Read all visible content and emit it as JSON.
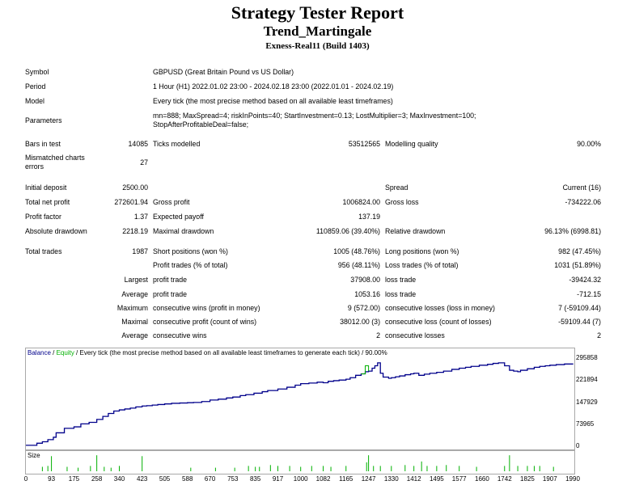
{
  "report": {
    "title": "Strategy Tester Report",
    "expert": "Trend_Martingale",
    "server": "Exness-Real11 (Build 1403)"
  },
  "settings": [
    {
      "label": "Symbol",
      "value": "GBPUSD (Great Britain Pound vs US Dollar)"
    },
    {
      "label": "Period",
      "value": "1 Hour (H1) 2022.01.02 23:00 - 2024.02.18 23:00 (2022.01.01 - 2024.02.19)"
    },
    {
      "label": "Model",
      "value": "Every tick (the most precise method based on all available least timeframes)"
    },
    {
      "label": "Parameters",
      "value": "mn=888; MaxSpread=4; riskInPoints=40; StartInvestment=0.13; LostMultiplier=3; MaxInvestment=100; StopAfterProfitableDeal=false;"
    }
  ],
  "stats": {
    "bars_label": "Bars in test",
    "bars": "14085",
    "ticks_label": "Ticks modelled",
    "ticks": "53512565",
    "quality_label": "Modelling quality",
    "quality": "90.00%",
    "mismatch_label": "Mismatched charts errors",
    "mismatch": "27",
    "deposit_label": "Initial deposit",
    "deposit": "2500.00",
    "spread_label": "Spread",
    "spread": "Current (16)",
    "netprofit_label": "Total net profit",
    "netprofit": "272601.94",
    "grossprofit_label": "Gross profit",
    "grossprofit": "1006824.00",
    "grossloss_label": "Gross loss",
    "grossloss": "-734222.06",
    "pf_label": "Profit factor",
    "pf": "1.37",
    "payoff_label": "Expected payoff",
    "payoff": "137.19",
    "absdd_label": "Absolute drawdown",
    "absdd": "2218.19",
    "maxdd_label": "Maximal drawdown",
    "maxdd": "110859.06 (39.40%)",
    "reldd_label": "Relative drawdown",
    "reldd": "96.13% (6998.81)",
    "trades_label": "Total trades",
    "trades": "1987",
    "short_label": "Short positions (won %)",
    "short": "1005 (48.76%)",
    "long_label": "Long positions (won %)",
    "long": "982 (47.45%)",
    "ptrades_label": "Profit trades (% of total)",
    "ptrades": "956 (48.11%)",
    "ltrades_label": "Loss trades (% of total)",
    "ltrades": "1031 (51.89%)",
    "largest_label": "Largest",
    "largest_pt_label": "profit trade",
    "largest_pt": "37908.00",
    "largest_lt_label": "loss trade",
    "largest_lt": "-39424.32",
    "average_label": "Average",
    "average_pt_label": "profit trade",
    "average_pt": "1053.16",
    "average_lt_label": "loss trade",
    "average_lt": "-712.15",
    "maximum_label": "Maximum",
    "max_cw_label": "consecutive wins (profit in money)",
    "max_cw": "9 (572.00)",
    "max_cl_label": "consecutive losses (loss in money)",
    "max_cl": "7 (-59109.44)",
    "maximal_label": "Maximal",
    "maximal_cp_label": "consecutive profit (count of wins)",
    "maximal_cp": "38012.00 (3)",
    "maximal_cl_label": "consecutive loss (count of losses)",
    "maximal_cl": "-59109.44 (7)",
    "avg2_label": "Average",
    "avg_cw_label": "consecutive wins",
    "avg_cw": "2",
    "avg_cl_label": "consecutive losses",
    "avg_cl": "2"
  },
  "chart_legend": {
    "balance": "Balance",
    "sep": " / ",
    "equity": "Equity",
    "rest": " / Every tick (the most precise method based on all available least timeframes to generate each tick) / 90.00%",
    "size_label": "Size",
    "balance_color": "#00008b",
    "equity_color": "#00b000"
  },
  "chart_data": {
    "type": "line",
    "x_label_ticks": [
      "0",
      "93",
      "175",
      "258",
      "340",
      "423",
      "505",
      "588",
      "670",
      "753",
      "835",
      "917",
      "1000",
      "1082",
      "1165",
      "1247",
      "1330",
      "1412",
      "1495",
      "1577",
      "1660",
      "1742",
      "1825",
      "1907",
      "1990"
    ],
    "y_label_ticks": [
      "295858",
      "221894",
      "147929",
      "73965",
      "0"
    ],
    "xlim": [
      0,
      1990
    ],
    "ylim": [
      0,
      295858
    ],
    "series": [
      {
        "name": "Balance",
        "color": "#00008b",
        "x": [
          0,
          40,
          60,
          80,
          100,
          110,
          140,
          175,
          200,
          230,
          258,
          280,
          300,
          320,
          340,
          360,
          380,
          400,
          423,
          440,
          460,
          480,
          505,
          530,
          560,
          588,
          610,
          640,
          670,
          700,
          730,
          753,
          780,
          800,
          830,
          860,
          880,
          917,
          950,
          980,
          1000,
          1030,
          1060,
          1082,
          1100,
          1120,
          1140,
          1165,
          1180,
          1200,
          1220,
          1235,
          1247,
          1260,
          1270,
          1280,
          1290,
          1300,
          1320,
          1330,
          1345,
          1360,
          1380,
          1400,
          1412,
          1430,
          1450,
          1470,
          1495,
          1520,
          1550,
          1577,
          1600,
          1620,
          1650,
          1680,
          1700,
          1720,
          1742,
          1760,
          1775,
          1790,
          1800,
          1825,
          1850,
          1870,
          1890,
          1907,
          1930,
          1960,
          1990
        ],
        "y": [
          3000,
          10000,
          15000,
          22000,
          30000,
          45000,
          60000,
          65000,
          75000,
          80000,
          90000,
          100000,
          110000,
          118000,
          122000,
          125000,
          128000,
          132000,
          135000,
          136000,
          138000,
          140000,
          142000,
          144000,
          145000,
          146000,
          147000,
          150000,
          155000,
          158000,
          162000,
          165000,
          170000,
          173000,
          178000,
          183000,
          187000,
          192000,
          198000,
          205000,
          210000,
          212000,
          215000,
          213000,
          218000,
          220000,
          222000,
          225000,
          230000,
          238000,
          243000,
          250000,
          252000,
          262000,
          270000,
          280000,
          245000,
          232000,
          228000,
          230000,
          233000,
          236000,
          240000,
          243000,
          245000,
          238000,
          242000,
          245000,
          248000,
          252000,
          258000,
          262000,
          265000,
          268000,
          272000,
          275000,
          278000,
          280000,
          270000,
          255000,
          252000,
          250000,
          255000,
          260000,
          265000,
          268000,
          270000,
          272000,
          274000,
          276000,
          278000
        ]
      },
      {
        "name": "Equity",
        "color": "#00b000",
        "x": [
          1220,
          1235,
          1247
        ],
        "y": [
          243000,
          270000,
          252000
        ]
      }
    ],
    "size_bars_x": [
      60,
      80,
      93,
      150,
      190,
      235,
      258,
      285,
      310,
      340,
      423,
      600,
      690,
      760,
      810,
      835,
      850,
      890,
      917,
      960,
      1000,
      1040,
      1082,
      1110,
      1165,
      1240,
      1247,
      1265,
      1290,
      1330,
      1380,
      1412,
      1440,
      1460,
      1495,
      1530,
      1577,
      1640,
      1742,
      1760,
      1790,
      1825,
      1850,
      1870,
      1920
    ],
    "size_bars_h": [
      0.25,
      0.3,
      0.85,
      0.25,
      0.2,
      0.3,
      0.9,
      0.25,
      0.2,
      0.3,
      0.85,
      0.2,
      0.2,
      0.2,
      0.3,
      0.25,
      0.25,
      0.35,
      0.3,
      0.3,
      0.25,
      0.3,
      0.3,
      0.25,
      0.3,
      0.5,
      0.9,
      0.3,
      0.3,
      0.3,
      0.35,
      0.3,
      0.55,
      0.3,
      0.3,
      0.35,
      0.3,
      0.25,
      0.3,
      0.9,
      0.3,
      0.3,
      0.3,
      0.3,
      0.25
    ]
  }
}
